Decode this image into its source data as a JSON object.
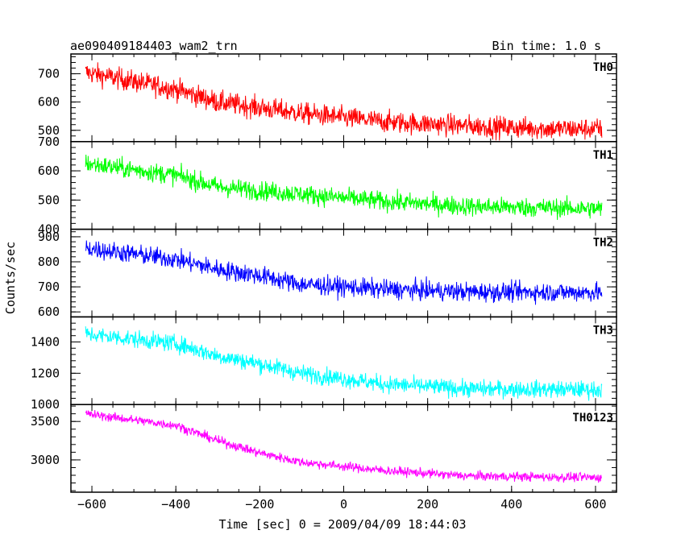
{
  "header": {
    "title": "ae090409184403_wam2_trn",
    "bin_time": "Bin time: 1.0 s"
  },
  "chart_data": {
    "type": "line",
    "xlabel": "Time [sec] 0 = 2009/04/09 18:44:03",
    "ylabel": "Counts/sec",
    "xlim": [
      -650,
      650
    ],
    "x_range_data": [
      -615,
      615
    ],
    "x_step": 1.0,
    "x_ticks": [
      -600,
      -400,
      -200,
      0,
      200,
      400,
      600
    ],
    "x_tick_labels": [
      "−600",
      "−400",
      "−200",
      "0",
      "200",
      "400",
      "600"
    ],
    "panels": [
      {
        "name": "TH0",
        "color": "#ff0000",
        "ylim": [
          460,
          770
        ],
        "y_ticks": [
          500,
          600,
          700
        ],
        "y_tick_labels": [
          "500",
          "600",
          "700"
        ],
        "trend": [
          [
            -615,
            705
          ],
          [
            -400,
            645
          ],
          [
            -300,
            600
          ],
          [
            -100,
            560
          ],
          [
            100,
            530
          ],
          [
            300,
            515
          ],
          [
            500,
            505
          ],
          [
            615,
            505
          ]
        ],
        "noise": 35
      },
      {
        "name": "TH1",
        "color": "#00ff00",
        "ylim": [
          400,
          700
        ],
        "y_ticks": [
          400,
          500,
          600,
          700
        ],
        "y_tick_labels": [
          "400",
          "500",
          "600",
          "700"
        ],
        "trend": [
          [
            -615,
            625
          ],
          [
            -400,
            585
          ],
          [
            -300,
            545
          ],
          [
            -100,
            520
          ],
          [
            100,
            495
          ],
          [
            300,
            478
          ],
          [
            615,
            470
          ]
        ],
        "noise": 30
      },
      {
        "name": "TH2",
        "color": "#0000ff",
        "ylim": [
          580,
          930
        ],
        "y_ticks": [
          600,
          700,
          800,
          900
        ],
        "y_tick_labels": [
          "600",
          "700",
          "800",
          "900"
        ],
        "trend": [
          [
            -615,
            855
          ],
          [
            -400,
            810
          ],
          [
            -300,
            770
          ],
          [
            -200,
            745
          ],
          [
            -100,
            710
          ],
          [
            100,
            690
          ],
          [
            300,
            680
          ],
          [
            615,
            678
          ]
        ],
        "noise": 35
      },
      {
        "name": "TH3",
        "color": "#00ffff",
        "ylim": [
          1000,
          1560
        ],
        "y_ticks": [
          1000,
          1200,
          1400
        ],
        "y_tick_labels": [
          "1000",
          "1200",
          "1400"
        ],
        "trend": [
          [
            -615,
            1450
          ],
          [
            -400,
            1390
          ],
          [
            -300,
            1310
          ],
          [
            -200,
            1260
          ],
          [
            -100,
            1200
          ],
          [
            100,
            1130
          ],
          [
            300,
            1100
          ],
          [
            615,
            1095
          ]
        ],
        "noise": 50
      },
      {
        "name": "TH0123",
        "color": "#ff00ff",
        "ylim": [
          2580,
          3720
        ],
        "y_ticks": [
          3000,
          3500
        ],
        "y_tick_labels": [
          "3000",
          "3500"
        ],
        "trend": [
          [
            -615,
            3600
          ],
          [
            -400,
            3450
          ],
          [
            -300,
            3250
          ],
          [
            -200,
            3090
          ],
          [
            -100,
            2970
          ],
          [
            100,
            2860
          ],
          [
            300,
            2790
          ],
          [
            615,
            2770
          ]
        ],
        "noise": 55
      }
    ]
  }
}
